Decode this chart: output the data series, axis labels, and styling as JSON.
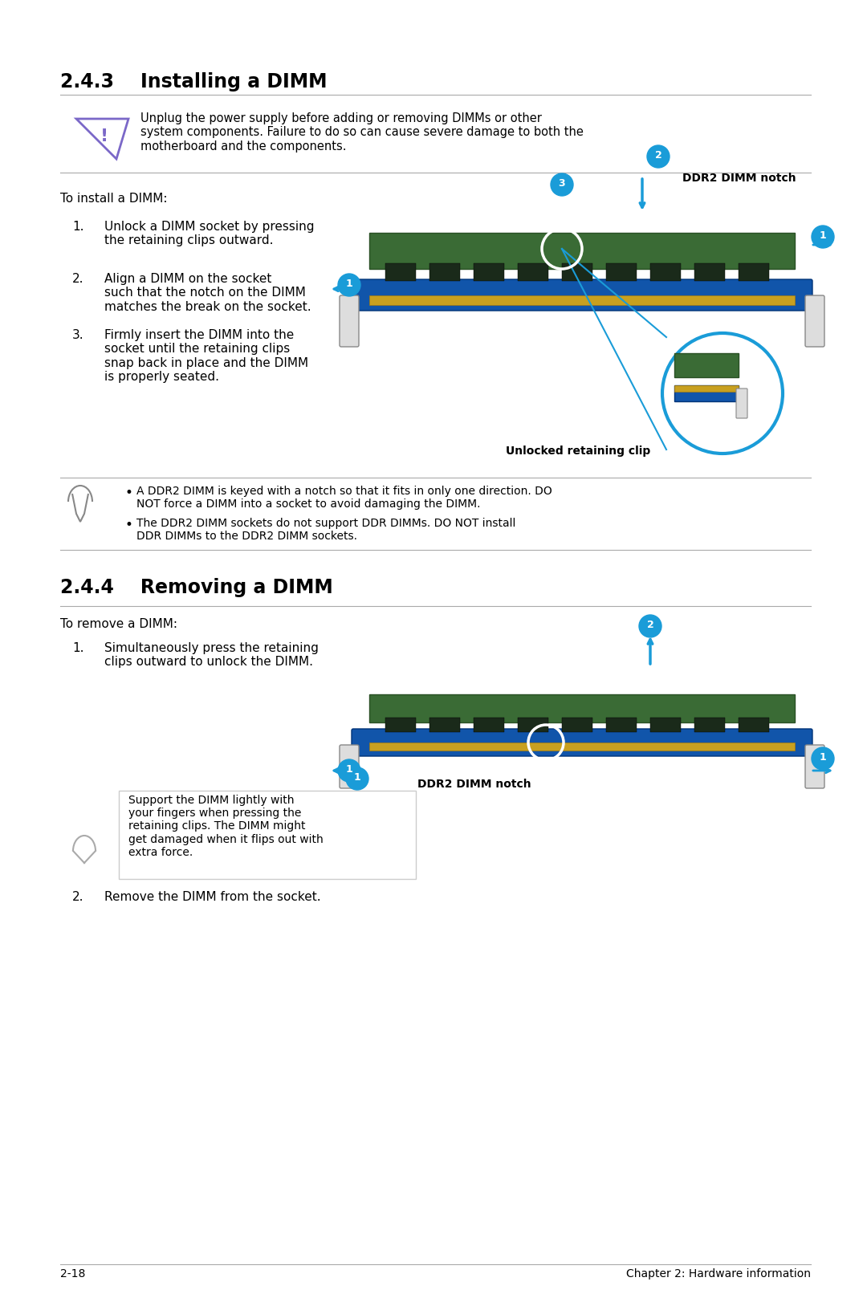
{
  "bg_color": "#ffffff",
  "page_width": 10.8,
  "page_height": 16.27,
  "section_243_title": "2.4.3    Installing a DIMM",
  "section_244_title": "2.4.4    Removing a DIMM",
  "warning_text": "Unplug the power supply before adding or removing DIMMs or other\nsystem components. Failure to do so can cause severe damage to both the\nmotherboard and the components.",
  "install_intro": "To install a DIMM:",
  "install_steps": [
    "Unlock a DIMM socket by pressing\nthe retaining clips outward.",
    "Align a DIMM on the socket\nsuch that the notch on the DIMM\nmatches the break on the socket.",
    "Firmly insert the DIMM into the\nsocket until the retaining clips\nsnap back in place and the DIMM\nis properly seated."
  ],
  "install_notes": [
    "A DDR2 DIMM is keyed with a notch so that it fits in only one direction. DO\nNOT force a DIMM into a socket to avoid damaging the DIMM.",
    "The DDR2 DIMM sockets do not support DDR DIMMs. DO NOT install\nDDR DIMMs to the DDR2 DIMM sockets."
  ],
  "remove_intro": "To remove a DIMM:",
  "remove_steps": [
    "Simultaneously press the retaining\nclips outward to unlock the DIMM."
  ],
  "remove_note": "Support the DIMM lightly with\nyour fingers when pressing the\nretaining clips. The DIMM might\nget damaged when it flips out with\nextra force.",
  "remove_step2": "Remove the DIMM from the socket.",
  "footer_left": "2-18",
  "footer_right": "Chapter 2: Hardware information",
  "unlocked_clip_label": "Unlocked retaining clip",
  "ddr2_notch_label": "DDR2 DIMM notch",
  "title_color": "#000000",
  "accent_color": "#1a9cd8",
  "warning_icon_color": "#7b68c8",
  "line_color": "#cccccc",
  "text_color": "#000000",
  "note_bg": "#f8f8f8"
}
